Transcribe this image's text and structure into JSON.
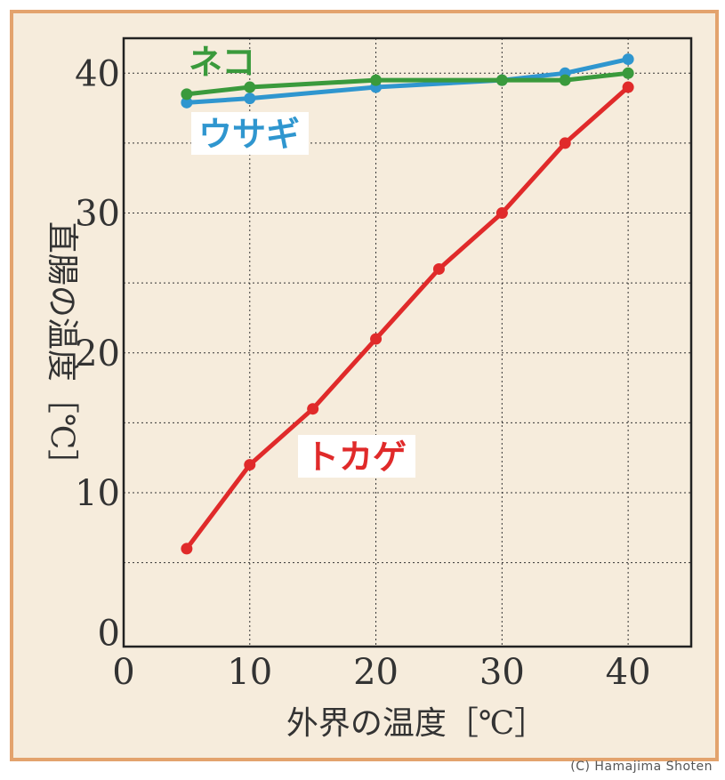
{
  "chart_data": {
    "type": "line",
    "xlabel": "外界の温度［℃］",
    "ylabel": "直腸の温度［℃］",
    "xlim": [
      0,
      45
    ],
    "ylim": [
      -1,
      42.5
    ],
    "x_ticks": [
      0,
      10,
      20,
      30,
      40
    ],
    "y_ticks": [
      0,
      10,
      20,
      30,
      40
    ],
    "grid": true,
    "grid_style": "dotted",
    "series": [
      {
        "name": "ネコ",
        "color": "#3a9a3c",
        "x": [
          5,
          10,
          20,
          30,
          35,
          40
        ],
        "y": [
          38.5,
          39.0,
          39.5,
          39.5,
          39.5,
          40.0
        ]
      },
      {
        "name": "ウサギ",
        "color": "#2f96cf",
        "x": [
          5,
          10,
          20,
          30,
          35,
          40
        ],
        "y": [
          37.9,
          38.2,
          39.0,
          39.5,
          40.0,
          41.0
        ]
      },
      {
        "name": "トカゲ",
        "color": "#e02a2a",
        "x": [
          5,
          10,
          15,
          20,
          25,
          30,
          35,
          40
        ],
        "y": [
          6,
          12,
          16,
          21,
          26,
          30,
          35,
          39
        ]
      }
    ]
  },
  "credit": "(C) Hamajima Shoten"
}
